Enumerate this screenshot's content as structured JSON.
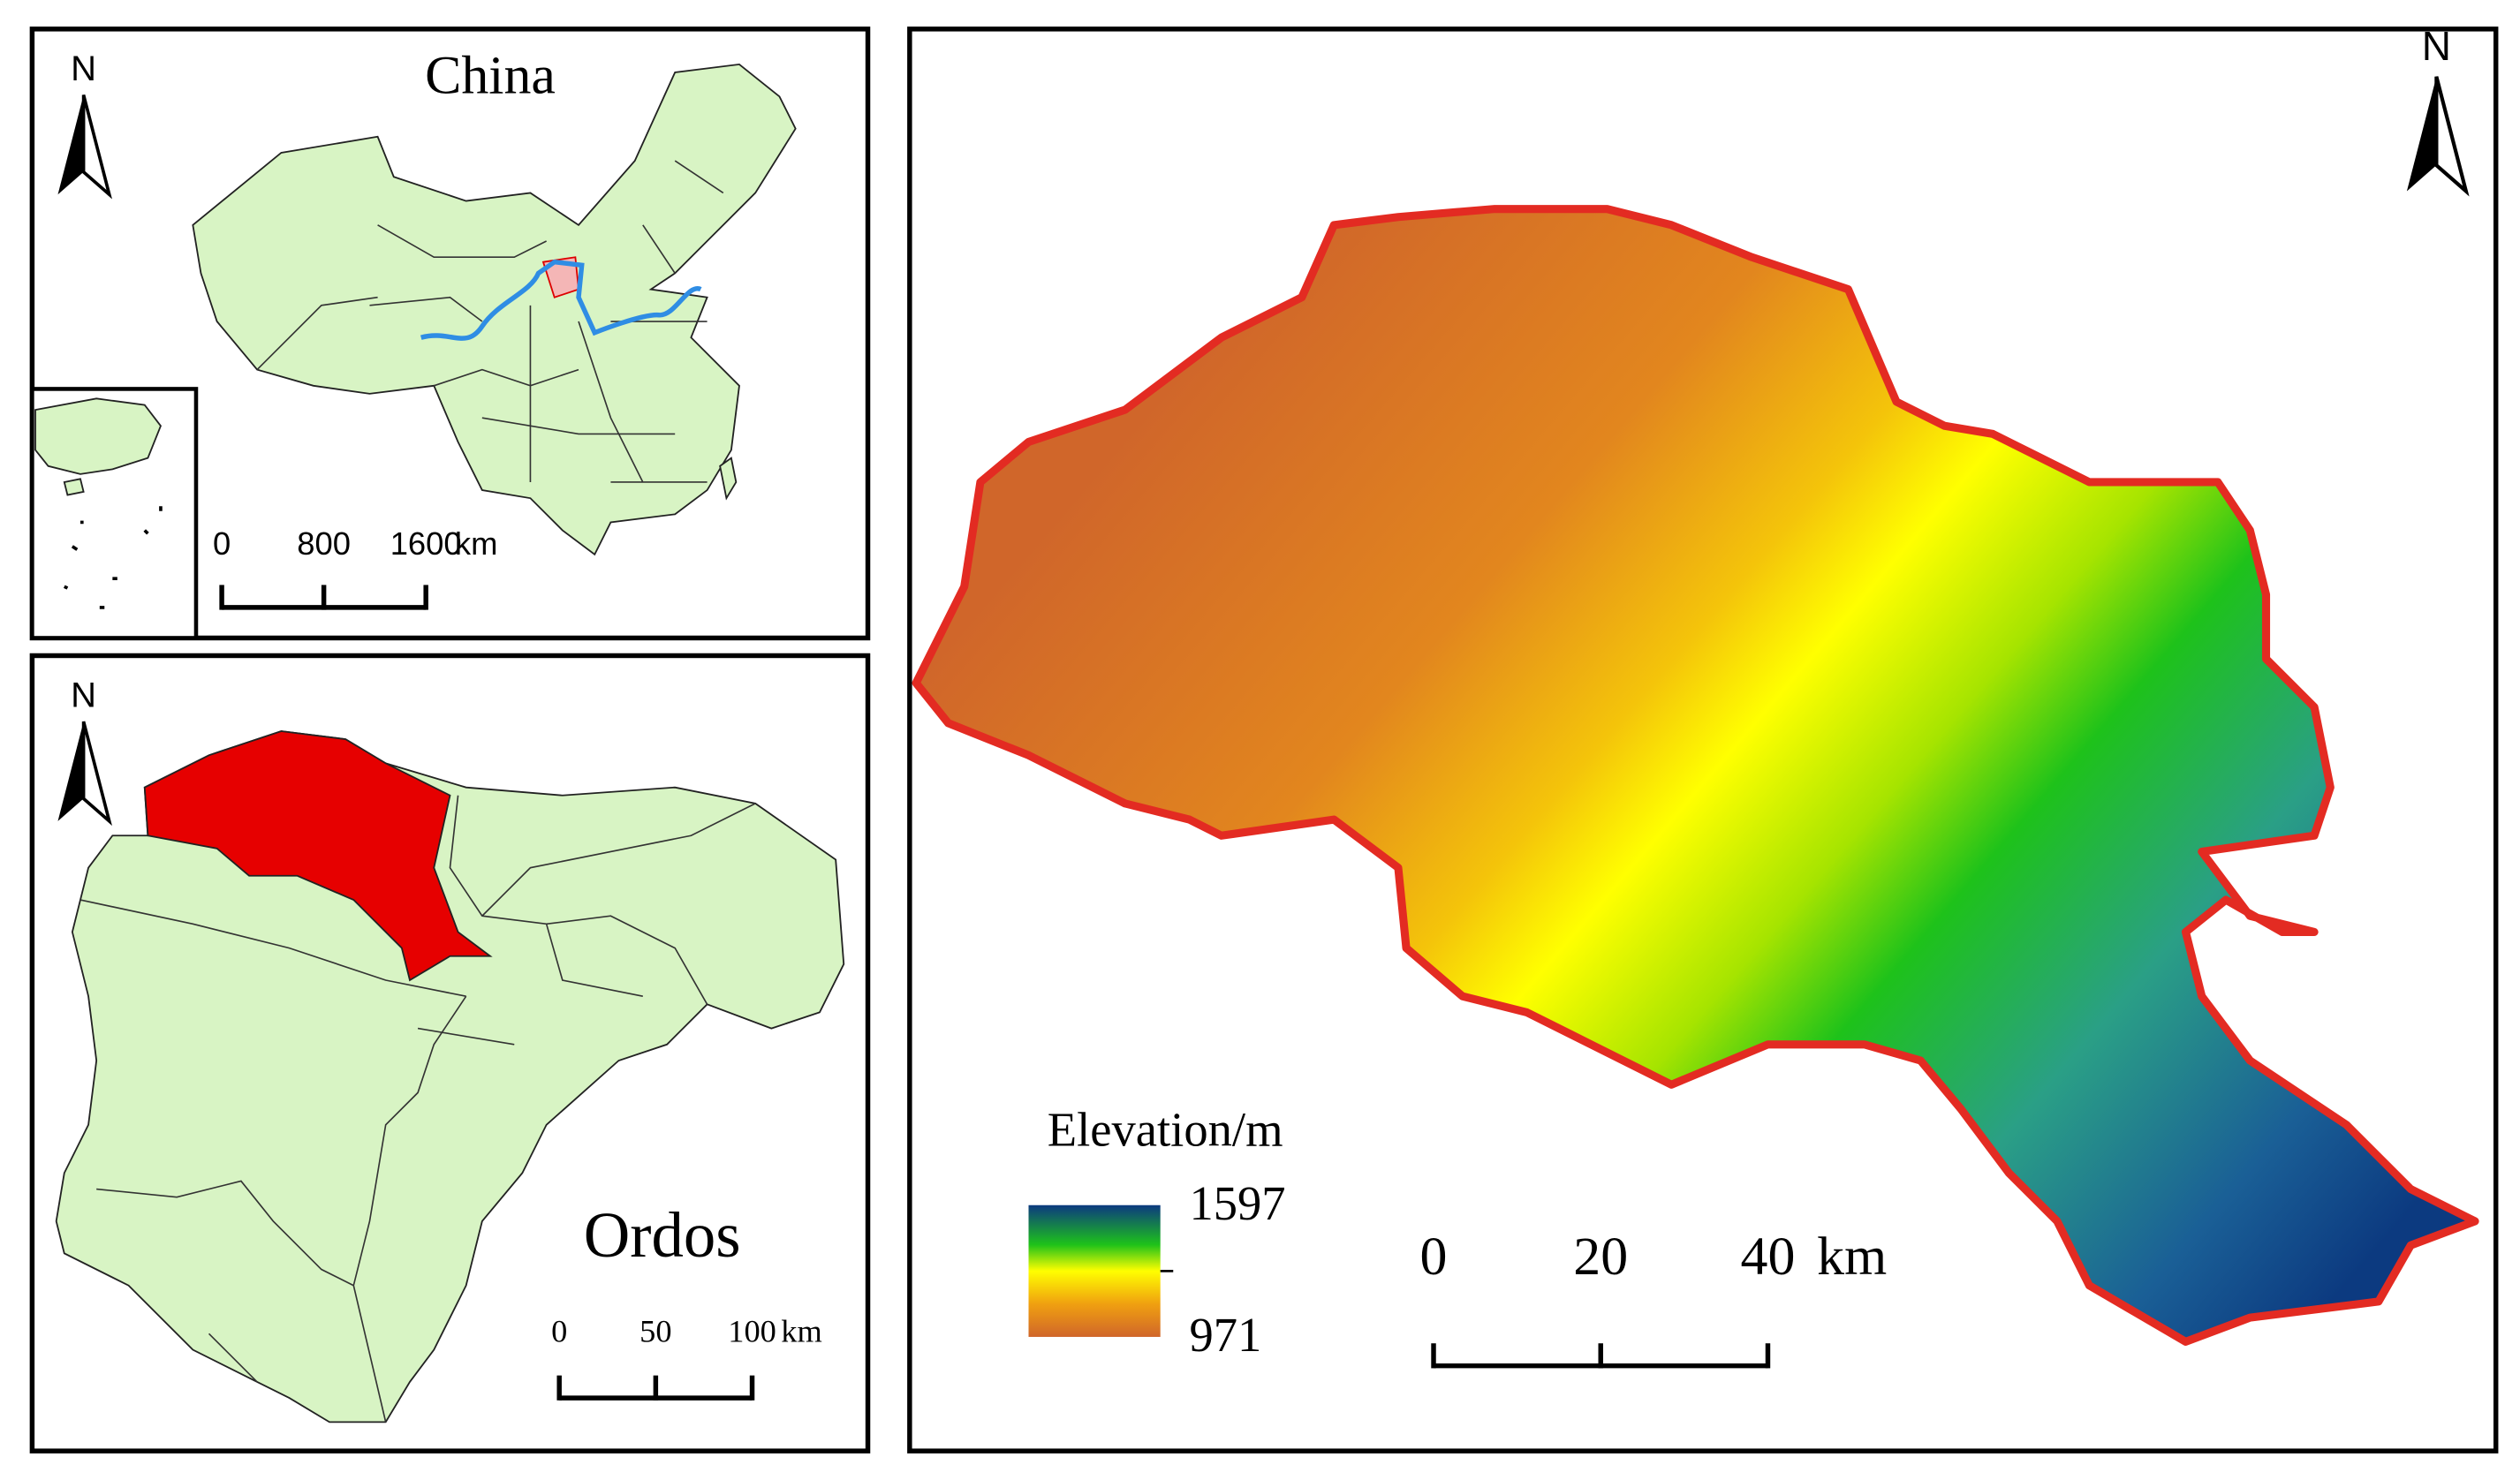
{
  "china_panel": {
    "north": "N",
    "title": "China",
    "scale_bar": {
      "ticks": [
        0,
        800,
        1600
      ],
      "unit": "km"
    }
  },
  "ordos_panel": {
    "north": "N",
    "title": "Ordos",
    "scale_bar": {
      "ticks": [
        0,
        50,
        100
      ],
      "unit": "km"
    }
  },
  "dem_panel": {
    "north": "N",
    "legend": {
      "title": "Elevation/m",
      "max": 1597,
      "min": 971
    },
    "scale_bar": {
      "ticks": [
        0,
        20,
        40
      ],
      "unit": "km"
    }
  }
}
